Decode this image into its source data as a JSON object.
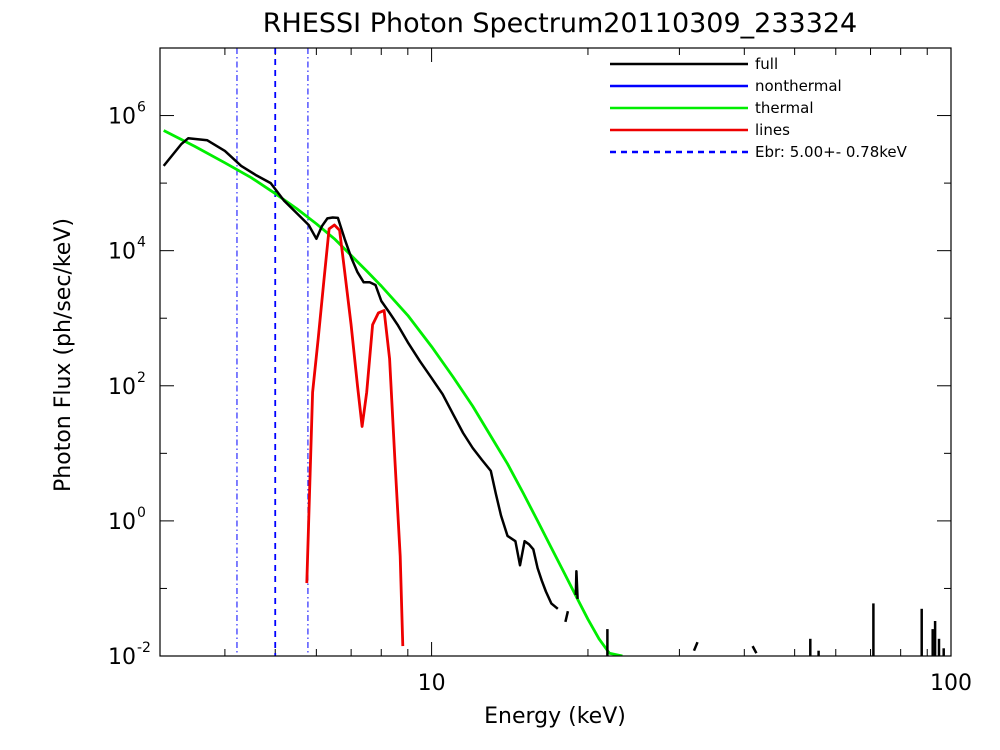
{
  "chart_data": {
    "type": "line",
    "title": "RHESSI Photon Spectrum20110309_233324",
    "xlabel": "Energy (keV)",
    "ylabel": "Photon Flux (ph/sec/keV)",
    "xscale": "log",
    "yscale": "log",
    "xlim": [
      3.0,
      100
    ],
    "ylim": [
      0.01,
      10000000
    ],
    "x_tick_labels": [
      {
        "value": 10,
        "label": "10"
      },
      {
        "value": 100,
        "label": "100"
      }
    ],
    "y_tick_labels": [
      {
        "value": 0.01,
        "base": "10",
        "exp": "-2"
      },
      {
        "value": 1,
        "base": "10",
        "exp": "0"
      },
      {
        "value": 100,
        "base": "10",
        "exp": "2"
      },
      {
        "value": 10000,
        "base": "10",
        "exp": "4"
      },
      {
        "value": 1000000,
        "base": "10",
        "exp": "6"
      }
    ],
    "legend_position": "top-right",
    "legend": [
      {
        "label": "full",
        "color": "#000000",
        "style": "solid"
      },
      {
        "label": "nonthermal",
        "color": "#0000ff",
        "style": "solid"
      },
      {
        "label": "thermal",
        "color": "#00ee00",
        "style": "solid"
      },
      {
        "label": "lines",
        "color": "#ee0000",
        "style": "solid"
      },
      {
        "label": "Ebr:   5.00+-  0.78keV",
        "color": "#0000ff",
        "style": "dashed"
      }
    ],
    "vertical_lines": [
      {
        "x": 4.22,
        "color": "#0000ff",
        "style": "dashdot"
      },
      {
        "x": 5.0,
        "color": "#0000ff",
        "style": "dashed"
      },
      {
        "x": 5.78,
        "color": "#0000ff",
        "style": "dashdot"
      }
    ],
    "series": [
      {
        "name": "thermal",
        "color": "#00ee00",
        "x": [
          3.05,
          3.5,
          4.0,
          4.5,
          5.0,
          5.5,
          6.0,
          6.5,
          7.0,
          7.5,
          8.0,
          9.0,
          10.0,
          11.0,
          12.0,
          13.0,
          14.0,
          15.0,
          16.0,
          17.0,
          18.0,
          19.0,
          20.0,
          21.0,
          22.0,
          23.3
        ],
        "y": [
          600000,
          350000,
          200000,
          120000,
          70000,
          42000,
          25000,
          15000,
          8500,
          5000,
          3000,
          1100,
          380,
          135,
          50,
          18,
          7,
          2.6,
          1.0,
          0.4,
          0.17,
          0.075,
          0.035,
          0.018,
          0.011,
          0.01
        ]
      },
      {
        "name": "full",
        "color": "#000000",
        "segments": [
          {
            "x": [
              3.05,
              3.3,
              3.4,
              3.7,
              4.0,
              4.3,
              4.6,
              4.9,
              5.2,
              5.5,
              5.8,
              6.0,
              6.15,
              6.3,
              6.45,
              6.6,
              6.8,
              7.0,
              7.2,
              7.4,
              7.6,
              7.8,
              8.0,
              8.3,
              8.6,
              9.0,
              9.5,
              10.0,
              10.5,
              11.0,
              11.5,
              12.0,
              12.5,
              13.0,
              13.3,
              13.6,
              14.0,
              14.5,
              14.8,
              15.1,
              15.4,
              15.7,
              16.0,
              16.3,
              16.6,
              17.0,
              17.5
            ],
            "y": [
              180000,
              380000,
              460000,
              430000,
              300000,
              180000,
              130000,
              100000,
              55000,
              36000,
              24000,
              15000,
              23000,
              30000,
              31000,
              30500,
              15000,
              8000,
              4800,
              3400,
              3400,
              3100,
              1800,
              1200,
              800,
              440,
              230,
              130,
              75,
              38,
              20,
              12,
              8,
              5.5,
              2.5,
              1.2,
              0.6,
              0.5,
              0.22,
              0.5,
              0.45,
              0.38,
              0.2,
              0.13,
              0.09,
              0.06,
              0.05
            ]
          },
          {
            "x": [
              18.1,
              18.3
            ],
            "y": [
              0.032,
              0.046
            ]
          },
          {
            "x": [
              18.95,
              19.0,
              19.1
            ],
            "y": [
              0.08,
              0.18,
              0.07
            ]
          },
          {
            "x": [
              21.8,
              21.8
            ],
            "y": [
              0.01,
              0.025
            ]
          },
          {
            "x": [
              32.0,
              32.5
            ],
            "y": [
              0.012,
              0.016
            ]
          },
          {
            "x": [
              41.5,
              42.2
            ],
            "y": [
              0.014,
              0.011
            ]
          },
          {
            "x": [
              43.3,
              43.3
            ],
            "y": [
              0.008,
              0.009
            ]
          },
          {
            "x": [
              49.6,
              49.6
            ],
            "y": [
              0.0075,
              0.0085
            ]
          },
          {
            "x": [
              53.6,
              53.6
            ],
            "y": [
              0.008,
              0.018
            ]
          },
          {
            "x": [
              55.6,
              55.6
            ],
            "y": [
              0.008,
              0.012
            ]
          },
          {
            "x": [
              58.0,
              58.0
            ],
            "y": [
              0.008,
              0.01
            ]
          },
          {
            "x": [
              60.0,
              60.0
            ],
            "y": [
              0.008,
              0.009
            ]
          },
          {
            "x": [
              70.9,
              70.9
            ],
            "y": [
              0.008,
              0.06
            ]
          },
          {
            "x": [
              84.8,
              84.8
            ],
            "y": [
              0.008,
              0.009
            ]
          },
          {
            "x": [
              87.8,
              87.8
            ],
            "y": [
              0.008,
              0.05
            ]
          },
          {
            "x": [
              92.2,
              92.2
            ],
            "y": [
              0.008,
              0.025
            ]
          },
          {
            "x": [
              93.2,
              93.2
            ],
            "y": [
              0.008,
              0.033
            ]
          },
          {
            "x": [
              94.8,
              94.8
            ],
            "y": [
              0.008,
              0.018
            ]
          },
          {
            "x": [
              96.8,
              96.8
            ],
            "y": [
              0.008,
              0.013
            ]
          }
        ]
      },
      {
        "name": "lines",
        "color": "#ee0000",
        "x": [
          5.75,
          5.9,
          6.05,
          6.2,
          6.35,
          6.5,
          6.65,
          6.8,
          7.0,
          7.2,
          7.35,
          7.5,
          7.7,
          7.9,
          8.1,
          8.3,
          8.5,
          8.7,
          8.8
        ],
        "y": [
          0.12,
          80,
          500,
          3500,
          21000,
          24000,
          20000,
          5000,
          800,
          100,
          25,
          80,
          800,
          1200,
          1300,
          250,
          8,
          0.3,
          0.014
        ]
      }
    ]
  }
}
